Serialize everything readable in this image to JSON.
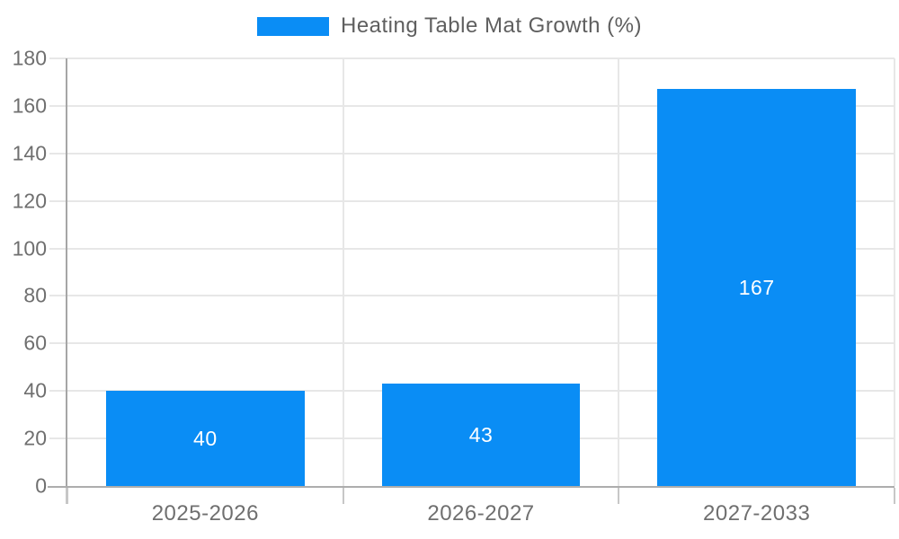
{
  "legend": {
    "label": "Heating Table Mat Growth (%)",
    "swatch_color": "#0a8df5"
  },
  "chart_data": {
    "type": "bar",
    "title": "Heating Table Mat Growth (%)",
    "categories": [
      "2025-2026",
      "2026-2027",
      "2027-2033"
    ],
    "values": [
      40,
      43,
      167
    ],
    "value_labels": [
      "40",
      "43",
      "167"
    ],
    "xlabel": "",
    "ylabel": "",
    "ylim": [
      0,
      180
    ],
    "ytick_step": 20,
    "yticks": [
      "0",
      "20",
      "40",
      "60",
      "80",
      "100",
      "120",
      "140",
      "160",
      "180"
    ],
    "grid": true,
    "legend_position": "top-center",
    "bar_color": "#0a8df5",
    "value_label_color": "#ffffff",
    "axis_color": "#a6a6a6",
    "gridline_color": "#e7e7e7",
    "tick_label_color": "#6f6f6f"
  }
}
